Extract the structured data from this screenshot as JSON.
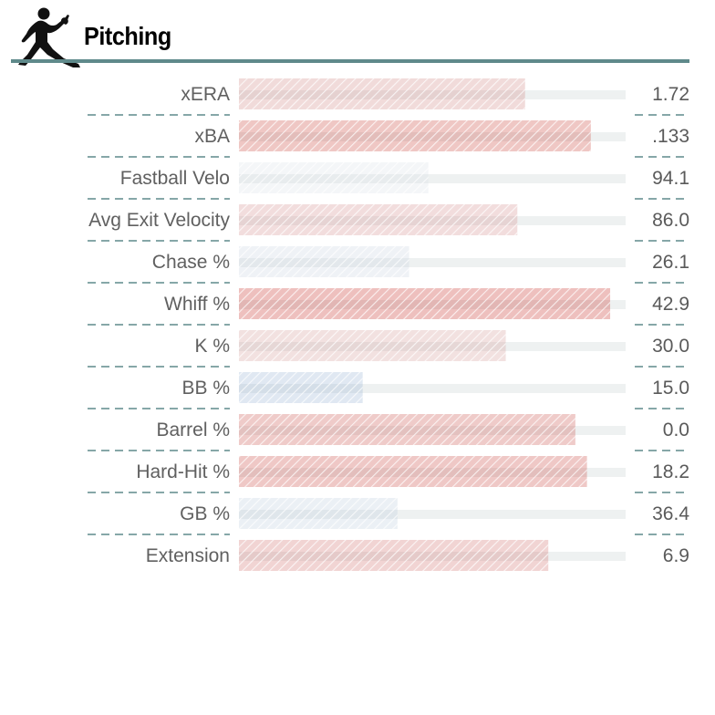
{
  "header": {
    "title": "Pitching",
    "icon": "pitcher-silhouette-icon"
  },
  "colors": {
    "track": "#eef1f1",
    "divider": "#5f8a8b",
    "low": "#2f64b4",
    "mid": "#e3e8ec",
    "high": "#c8332a"
  },
  "chart_data": {
    "type": "bar",
    "orientation": "horizontal",
    "title": "Pitching",
    "xlim": [
      0,
      100
    ],
    "grid": false,
    "categories": [
      "xERA",
      "xBA",
      "Fastball Velo",
      "Avg Exit Velocity",
      "Chase %",
      "Whiff %",
      "K %",
      "BB %",
      "Barrel %",
      "Hard-Hit %",
      "GB %",
      "Extension"
    ],
    "values": [
      74,
      91,
      49,
      72,
      44,
      96,
      69,
      32,
      87,
      90,
      41,
      80
    ],
    "value_labels": [
      "1.72",
      ".133",
      "94.1",
      "86.0",
      "26.1",
      "42.9",
      "30.0",
      "15.0",
      "0.0",
      "18.2",
      "36.4",
      "6.9"
    ]
  }
}
